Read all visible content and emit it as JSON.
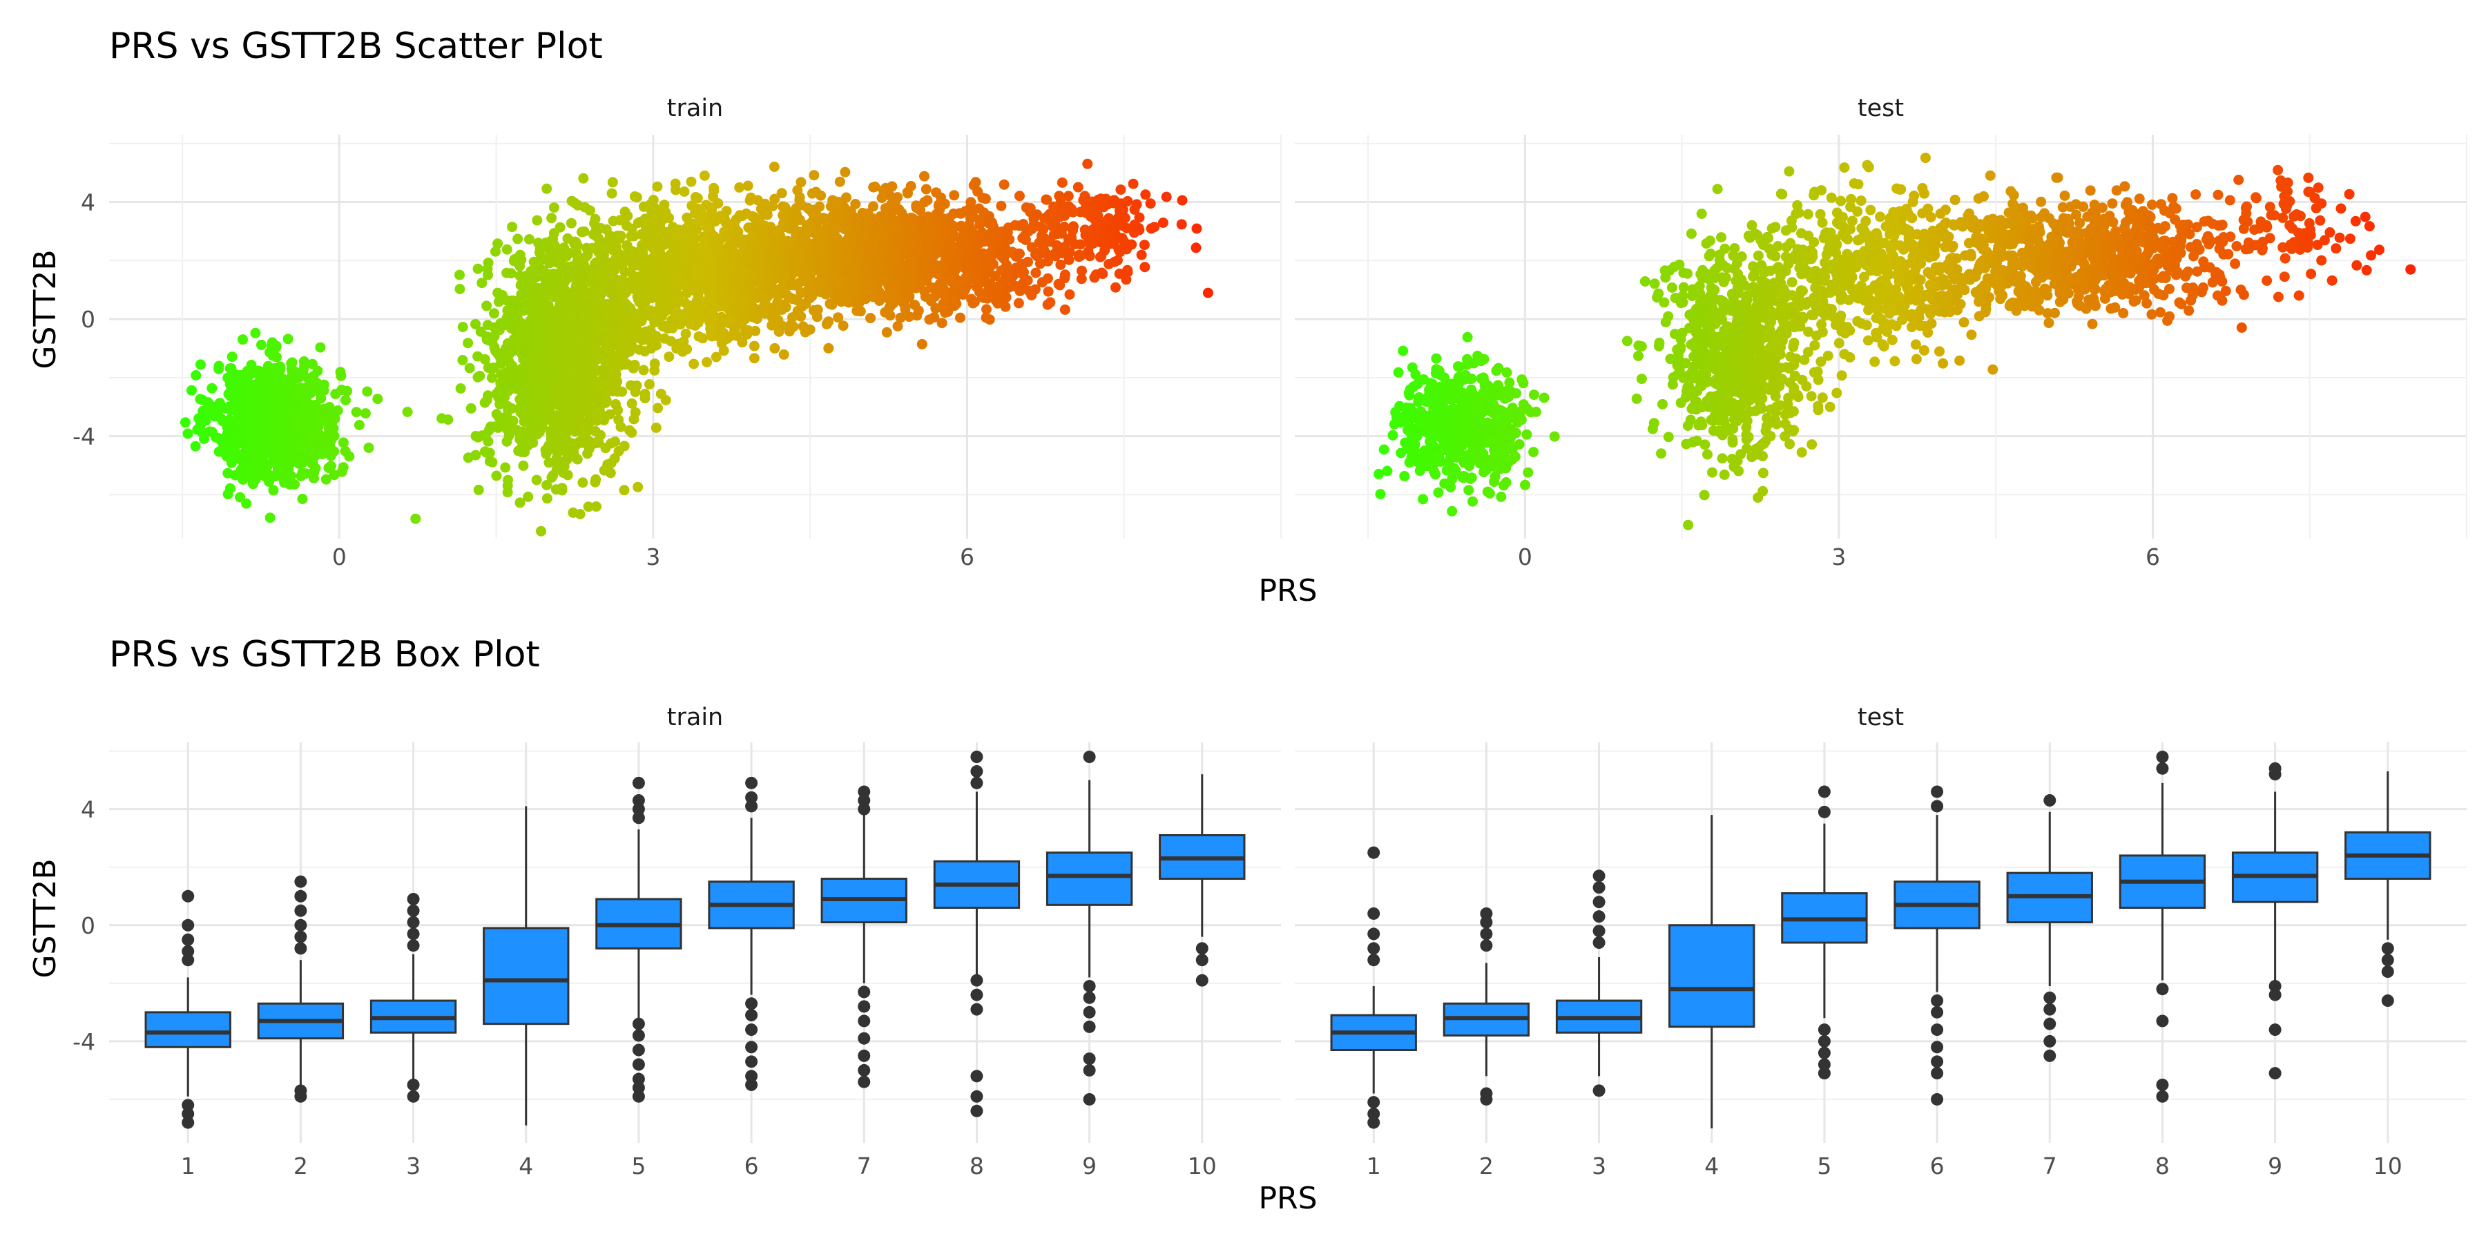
{
  "chart_data": [
    {
      "type": "scatter",
      "title": "PRS vs GSTT2B Scatter Plot",
      "xlabel": "PRS",
      "ylabel": "GSTT2B",
      "panels": [
        "train",
        "test"
      ],
      "xlim": [
        -2.2,
        9
      ],
      "ylim": [
        -7.5,
        6.3
      ],
      "xticks": [
        0,
        3,
        6
      ],
      "yticks": [
        4,
        0,
        -4
      ],
      "color_scale": {
        "low": "#33ff00",
        "mid": "#ccbb00",
        "high": "#ff2200",
        "range": [
          -1.5,
          8.5
        ]
      },
      "clusters": {
        "train": [
          {
            "x_mean": -0.6,
            "x_sd": 0.3,
            "y_mean": -3.5,
            "y_sd": 1.0,
            "n": 900
          },
          {
            "x_mean": 2.1,
            "x_sd": 0.35,
            "y_mean": -1.5,
            "y_sd": 1.9,
            "n": 1300
          },
          {
            "x_mean": 3.4,
            "x_sd": 0.6,
            "y_mean": 1.6,
            "y_sd": 1.2,
            "n": 1100
          },
          {
            "x_mean": 5.3,
            "x_sd": 0.7,
            "y_mean": 2.2,
            "y_sd": 0.9,
            "n": 1300
          },
          {
            "x_mean": 7.2,
            "x_sd": 0.35,
            "y_mean": 3.0,
            "y_sd": 0.8,
            "n": 180
          }
        ],
        "test": [
          {
            "x_mean": -0.6,
            "x_sd": 0.3,
            "y_mean": -3.6,
            "y_sd": 1.0,
            "n": 500
          },
          {
            "x_mean": 2.0,
            "x_sd": 0.35,
            "y_mean": -1.3,
            "y_sd": 1.8,
            "n": 700
          },
          {
            "x_mean": 3.4,
            "x_sd": 0.6,
            "y_mean": 1.6,
            "y_sd": 1.2,
            "n": 600
          },
          {
            "x_mean": 5.3,
            "x_sd": 0.7,
            "y_mean": 2.2,
            "y_sd": 0.9,
            "n": 700
          },
          {
            "x_mean": 7.3,
            "x_sd": 0.35,
            "y_mean": 3.1,
            "y_sd": 0.8,
            "n": 100
          }
        ]
      }
    },
    {
      "type": "box",
      "title": "PRS vs GSTT2B Box Plot",
      "xlabel": "PRS",
      "ylabel": "GSTT2B",
      "panels": [
        "train",
        "test"
      ],
      "categories": [
        "1",
        "2",
        "3",
        "4",
        "5",
        "6",
        "7",
        "8",
        "9",
        "10"
      ],
      "ylim": [
        -7.5,
        6.3
      ],
      "yticks": [
        4,
        0,
        -4
      ],
      "fill": "#1e90ff",
      "boxes": {
        "train": [
          {
            "q1": -4.2,
            "median": -3.7,
            "q3": -3.0,
            "whisker_low": -5.9,
            "whisker_high": -1.8,
            "outliers": [
              1.0,
              0.0,
              -0.5,
              -0.9,
              -1.2,
              -6.2,
              -6.5,
              -6.8
            ]
          },
          {
            "q1": -3.9,
            "median": -3.3,
            "q3": -2.7,
            "whisker_low": -5.5,
            "whisker_high": -1.2,
            "outliers": [
              1.5,
              1.0,
              0.5,
              0.0,
              -0.4,
              -0.8,
              -5.7,
              -5.9
            ]
          },
          {
            "q1": -3.7,
            "median": -3.2,
            "q3": -2.6,
            "whisker_low": -5.3,
            "whisker_high": -1.0,
            "outliers": [
              0.9,
              0.5,
              0.1,
              -0.3,
              -0.7,
              -5.5,
              -5.9
            ]
          },
          {
            "q1": -3.4,
            "median": -1.9,
            "q3": -0.1,
            "whisker_low": -6.9,
            "whisker_high": 4.1,
            "outliers": []
          },
          {
            "q1": -0.8,
            "median": 0.0,
            "q3": 0.9,
            "whisker_low": -3.2,
            "whisker_high": 3.3,
            "outliers": [
              4.9,
              4.3,
              4.0,
              3.7,
              -3.4,
              -3.8,
              -4.3,
              -4.8,
              -5.3,
              -5.6,
              -5.9
            ]
          },
          {
            "q1": -0.1,
            "median": 0.7,
            "q3": 1.5,
            "whisker_low": -2.4,
            "whisker_high": 3.7,
            "outliers": [
              4.9,
              4.4,
              4.1,
              -2.7,
              -3.1,
              -3.6,
              -4.2,
              -4.7,
              -5.2,
              -5.5
            ]
          },
          {
            "q1": 0.1,
            "median": 0.9,
            "q3": 1.6,
            "whisker_low": -2.0,
            "whisker_high": 3.8,
            "outliers": [
              4.6,
              4.3,
              4.0,
              -2.3,
              -2.8,
              -3.3,
              -3.9,
              -4.5,
              -5.0,
              -5.4
            ]
          },
          {
            "q1": 0.6,
            "median": 1.4,
            "q3": 2.2,
            "whisker_low": -1.7,
            "whisker_high": 4.6,
            "outliers": [
              5.8,
              5.3,
              4.9,
              -1.9,
              -2.4,
              -2.9,
              -5.2,
              -5.9,
              -6.4
            ]
          },
          {
            "q1": 0.7,
            "median": 1.7,
            "q3": 2.5,
            "whisker_low": -1.8,
            "whisker_high": 5.0,
            "outliers": [
              5.8,
              -2.1,
              -2.5,
              -3.0,
              -3.5,
              -4.6,
              -5.0,
              -6.0
            ]
          },
          {
            "q1": 1.6,
            "median": 2.3,
            "q3": 3.1,
            "whisker_low": -0.4,
            "whisker_high": 5.2,
            "outliers": [
              -0.8,
              -1.2,
              -1.9
            ]
          }
        ],
        "test": [
          {
            "q1": -4.3,
            "median": -3.7,
            "q3": -3.1,
            "whisker_low": -5.8,
            "whisker_high": -2.1,
            "outliers": [
              2.5,
              0.4,
              -0.3,
              -0.8,
              -1.2,
              -6.1,
              -6.5,
              -6.8
            ]
          },
          {
            "q1": -3.8,
            "median": -3.2,
            "q3": -2.7,
            "whisker_low": -5.2,
            "whisker_high": -1.3,
            "outliers": [
              0.4,
              0.1,
              -0.3,
              -0.7,
              -5.8,
              -6.0
            ]
          },
          {
            "q1": -3.7,
            "median": -3.2,
            "q3": -2.6,
            "whisker_low": -5.2,
            "whisker_high": -1.1,
            "outliers": [
              1.7,
              1.3,
              0.8,
              0.3,
              -0.2,
              -0.6,
              -5.7
            ]
          },
          {
            "q1": -3.5,
            "median": -2.2,
            "q3": 0.0,
            "whisker_low": -7.0,
            "whisker_high": 3.8,
            "outliers": []
          },
          {
            "q1": -0.6,
            "median": 0.2,
            "q3": 1.1,
            "whisker_low": -3.2,
            "whisker_high": 3.5,
            "outliers": [
              4.6,
              3.9,
              -3.6,
              -4.0,
              -4.4,
              -4.8,
              -5.1
            ]
          },
          {
            "q1": -0.1,
            "median": 0.7,
            "q3": 1.5,
            "whisker_low": -2.3,
            "whisker_high": 3.8,
            "outliers": [
              4.6,
              4.1,
              -2.6,
              -3.0,
              -3.6,
              -4.2,
              -4.7,
              -5.1,
              -6.0
            ]
          },
          {
            "q1": 0.1,
            "median": 1.0,
            "q3": 1.8,
            "whisker_low": -2.1,
            "whisker_high": 3.9,
            "outliers": [
              4.3,
              -2.5,
              -2.9,
              -3.4,
              -4.0,
              -4.5
            ]
          },
          {
            "q1": 0.6,
            "median": 1.5,
            "q3": 2.4,
            "whisker_low": -1.9,
            "whisker_high": 4.9,
            "outliers": [
              5.8,
              5.4,
              -2.2,
              -3.3,
              -5.5,
              -5.9
            ]
          },
          {
            "q1": 0.8,
            "median": 1.7,
            "q3": 2.5,
            "whisker_low": -1.9,
            "whisker_high": 4.6,
            "outliers": [
              5.4,
              5.2,
              -2.1,
              -2.4,
              -3.6,
              -5.1
            ]
          },
          {
            "q1": 1.6,
            "median": 2.4,
            "q3": 3.2,
            "whisker_low": -0.5,
            "whisker_high": 5.3,
            "outliers": [
              -0.8,
              -1.2,
              -1.6,
              -2.6
            ]
          }
        ]
      }
    }
  ]
}
